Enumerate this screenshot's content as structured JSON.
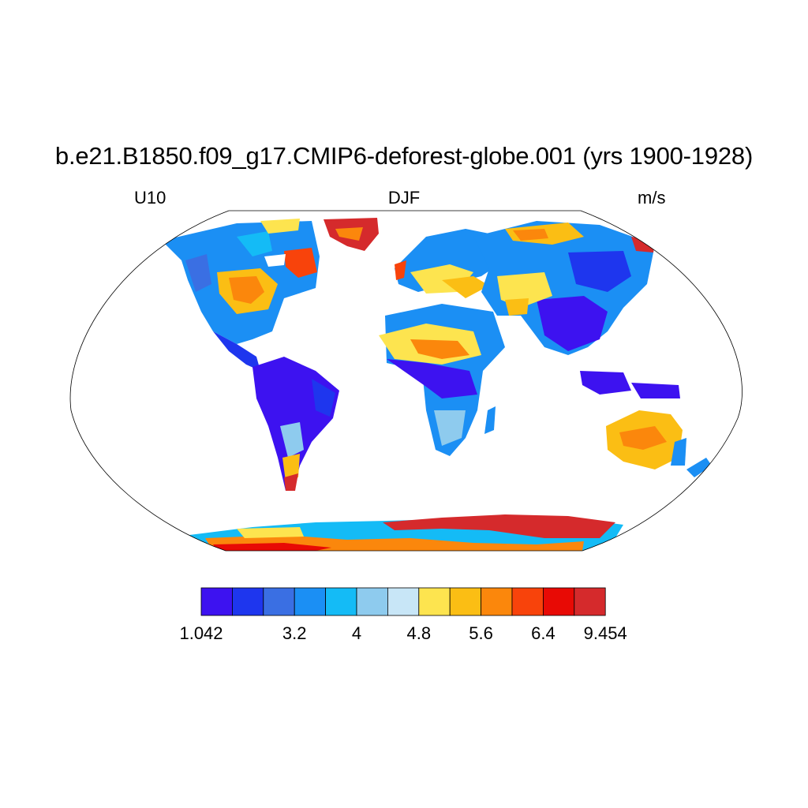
{
  "title": "b.e21.B1850.f09_g17.CMIP6-deforest-globe.001 (yrs 1900-1928)",
  "variable": "U10",
  "season": "DJF",
  "units": "m/s",
  "colorbar": {
    "colors": [
      "#3d12f0",
      "#1e36ee",
      "#3a6fe3",
      "#1b8ff4",
      "#14bbf6",
      "#8ecbee",
      "#c8e6f7",
      "#fde44f",
      "#fbbe14",
      "#fb870c",
      "#f8430b",
      "#e80a05",
      "#d52a2c"
    ],
    "tick_labels": [
      "1.042",
      "3.2",
      "4",
      "4.8",
      "5.6",
      "6.4",
      "9.454"
    ]
  }
}
